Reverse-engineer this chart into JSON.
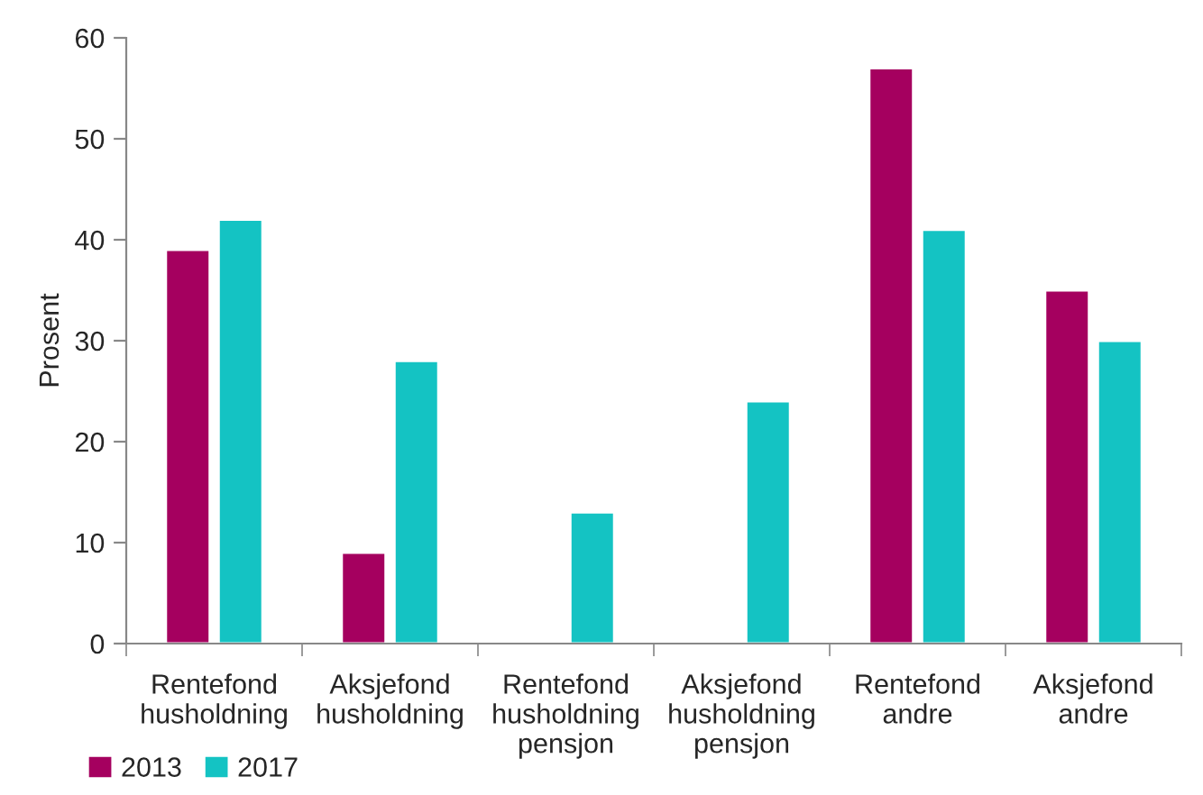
{
  "chart_data": {
    "type": "bar",
    "ylabel": "Prosent",
    "categories": [
      "Rentefond\nhusholdning",
      "Aksjefond\nhusholdning",
      "Rentefond\nhusholdning\npensjon",
      "Aksjefond\nhusholdning\npensjon",
      "Rentefond\nandre",
      "Aksjefond\nandre"
    ],
    "series": [
      {
        "name": "2013",
        "color": "#a5005f",
        "values": [
          39,
          9,
          null,
          null,
          57,
          35
        ]
      },
      {
        "name": "2017",
        "color": "#14c3c3",
        "values": [
          42,
          28,
          13,
          24,
          41,
          30
        ]
      }
    ],
    "ylim": [
      0,
      60
    ],
    "yticks": [
      0,
      10,
      20,
      30,
      40,
      50,
      60
    ],
    "grid": false,
    "legend": "bottom left"
  }
}
